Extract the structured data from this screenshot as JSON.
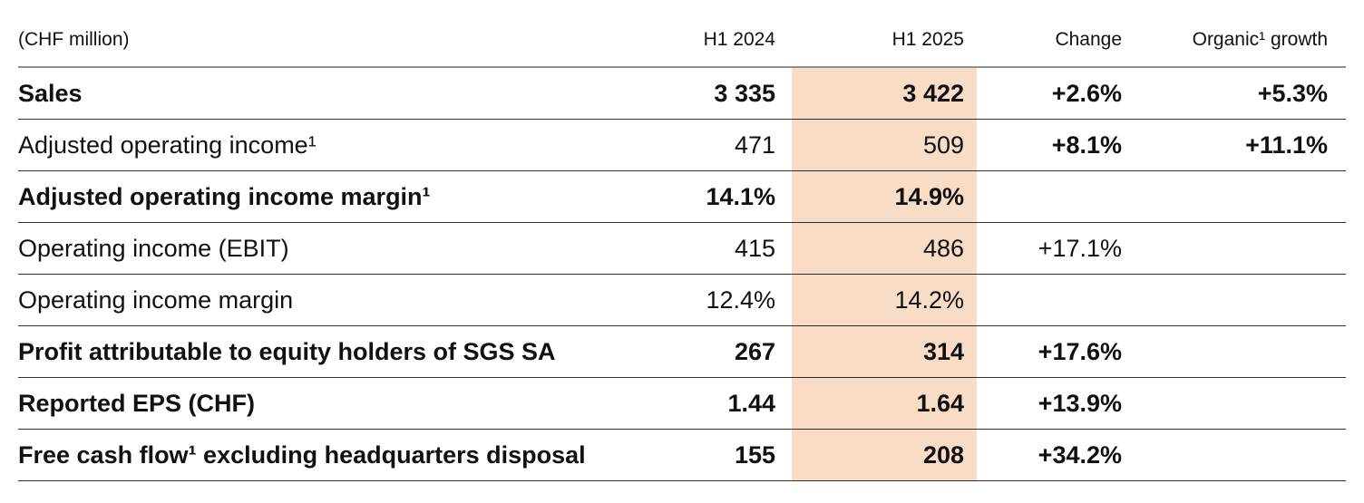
{
  "colors": {
    "highlight_column": "#f9dcc6",
    "text": "#111111",
    "header_rule": "#8f8f8f",
    "row_rule": "#2e2e2e"
  },
  "table": {
    "unit_label": "(CHF million)",
    "columns": {
      "h1_2024": "H1 2024",
      "h1_2025": "H1 2025",
      "change": "Change",
      "organic": "Organic¹ growth"
    },
    "highlighted_column": "H1 2025",
    "rows": [
      {
        "label": "Sales",
        "h1_2024": "3 335",
        "h1_2025": "3 422",
        "change": "+2.6%",
        "organic": "+5.3%"
      },
      {
        "label": "Adjusted operating income¹",
        "h1_2024": "471",
        "h1_2025": "509",
        "change": "+8.1%",
        "organic": "+11.1%"
      },
      {
        "label": "Adjusted operating income margin¹",
        "h1_2024": "14.1%",
        "h1_2025": "14.9%",
        "change": "",
        "organic": ""
      },
      {
        "label": "Operating income (EBIT)",
        "h1_2024": "415",
        "h1_2025": "486",
        "change": "+17.1%",
        "organic": ""
      },
      {
        "label": "Operating income margin",
        "h1_2024": "12.4%",
        "h1_2025": "14.2%",
        "change": "",
        "organic": ""
      },
      {
        "label": "Profit attributable to equity holders of SGS SA",
        "h1_2024": "267",
        "h1_2025": "314",
        "change": "+17.6%",
        "organic": ""
      },
      {
        "label": "Reported EPS (CHF)",
        "h1_2024": "1.44",
        "h1_2025": "1.64",
        "change": "+13.9%",
        "organic": ""
      },
      {
        "label": "Free cash flow¹ excluding headquarters disposal",
        "h1_2024": "155",
        "h1_2025": "208",
        "change": "+34.2%",
        "organic": ""
      }
    ]
  }
}
